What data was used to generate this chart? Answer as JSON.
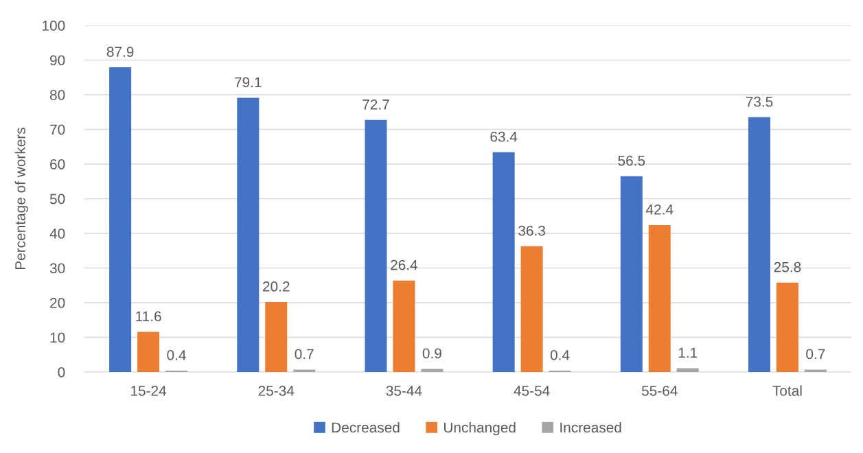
{
  "chart_data": {
    "type": "bar",
    "categories": [
      "15-24",
      "25-34",
      "35-44",
      "45-54",
      "55-64",
      "Total"
    ],
    "series": [
      {
        "name": "Decreased",
        "color": "#4472c4",
        "values": [
          87.9,
          79.1,
          72.7,
          63.4,
          56.5,
          73.5
        ]
      },
      {
        "name": "Unchanged",
        "color": "#ed7d31",
        "values": [
          11.6,
          20.2,
          26.4,
          36.3,
          42.4,
          25.8
        ]
      },
      {
        "name": "Increased",
        "color": "#a5a5a5",
        "values": [
          0.4,
          0.7,
          0.9,
          0.4,
          1.1,
          0.7
        ]
      }
    ],
    "ylabel": "Percentage of workers",
    "ylim": [
      0,
      100
    ],
    "yticks": [
      0,
      10,
      20,
      30,
      40,
      50,
      60,
      70,
      80,
      90,
      100
    ],
    "grid": "y",
    "legend": "bottom",
    "data_labels": true
  }
}
